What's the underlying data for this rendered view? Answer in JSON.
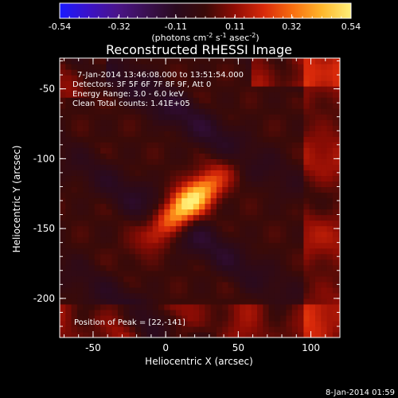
{
  "colors": {
    "background": "#000000",
    "axis": "#ffffff",
    "colormap": [
      "#1a1aff",
      "#3b12c8",
      "#4a1488",
      "#3a1050",
      "#2a0a1e",
      "#3a0a08",
      "#8e0c04",
      "#d8290a",
      "#f86e10",
      "#ffb72c",
      "#fff07a"
    ]
  },
  "colorbar": {
    "tick_labels": [
      "-0.54",
      "-0.32",
      "-0.11",
      "0.11",
      "0.32",
      "0.54"
    ],
    "units_label_parts": [
      "(photons cm",
      "-2",
      " s",
      "-1",
      " asec",
      "-2",
      ")"
    ]
  },
  "chart_data": {
    "type": "heatmap",
    "title": "Reconstructed RHESSI Image",
    "xlabel": "Heliocentric X (arcsec)",
    "ylabel": "Heliocentric Y (arcsec)",
    "xlim": [
      -73,
      120
    ],
    "ylim": [
      -228,
      -28
    ],
    "xticks": [
      -50,
      0,
      50,
      100
    ],
    "yticks": [
      -50,
      -100,
      -150,
      -200
    ],
    "colorbar_range": [
      -0.54,
      0.54
    ],
    "peak_position": [
      22,
      -141
    ],
    "annotations": [
      "7-Jan-2014 13:46:08.000 to 13:51:54.000",
      "Detectors: 3F 5F 6F 7F 8F 9F, Att 0",
      "Energy Range: 3.0 - 6.0 keV",
      "Clean     Total counts: 1.41E+05",
      "Position of Peak = [22,-141]"
    ]
  },
  "footer": {
    "timestamp": "8-Jan-2014 01:59"
  }
}
